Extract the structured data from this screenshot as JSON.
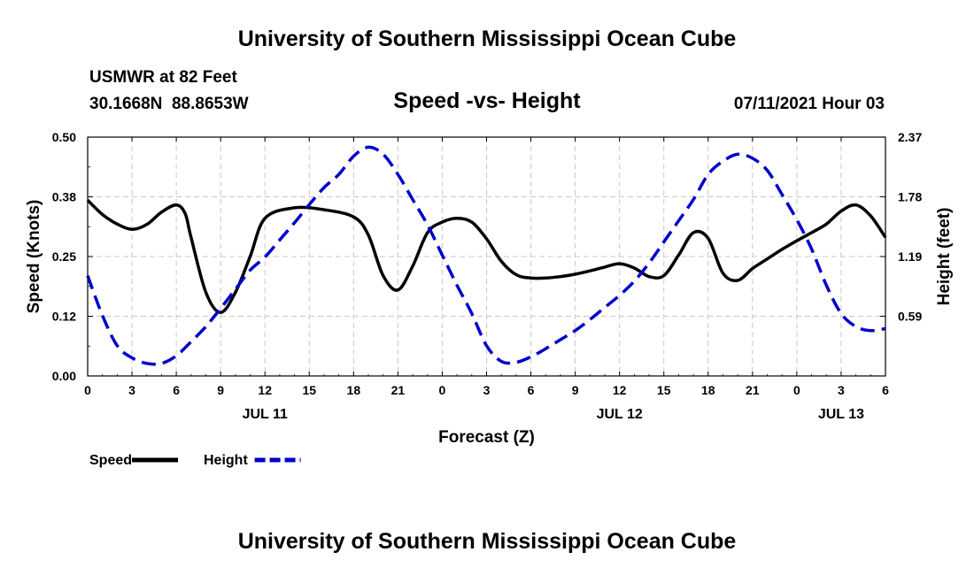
{
  "page": {
    "title_top": "University of Southern Mississippi Ocean Cube",
    "title_bottom": "University of Southern Mississippi Ocean Cube",
    "station": "USMWR at 82 Feet",
    "coords": "30.1668N  88.8653W",
    "datetime": "07/11/2021 Hour 03"
  },
  "chart_data": {
    "type": "line",
    "title": "Speed -vs- Height",
    "xlabel": "Forecast (Z)",
    "ylabel": "Speed (Knots)",
    "y2label": "Height (feet)",
    "xlim": [
      0,
      54
    ],
    "ylim": [
      0,
      0.5
    ],
    "y2lim": [
      0,
      2.37
    ],
    "x_tick_values": [
      0,
      3,
      6,
      9,
      12,
      15,
      18,
      21,
      24,
      27,
      30,
      33,
      36,
      39,
      42,
      45,
      48,
      51,
      54
    ],
    "x_tick_labels": [
      "0",
      "3",
      "6",
      "9",
      "12",
      "15",
      "18",
      "21",
      "0",
      "3",
      "6",
      "9",
      "12",
      "15",
      "18",
      "21",
      "0",
      "3",
      "6"
    ],
    "y_ticks": [
      0.0,
      0.125,
      0.25,
      0.375,
      0.5
    ],
    "y_tick_labels": [
      "0.00",
      "0.12",
      "0.25",
      "0.38",
      "0.50"
    ],
    "y2_ticks": [
      0.593,
      1.185,
      1.778,
      2.37
    ],
    "y2_tick_labels": [
      "0.59",
      "1.19",
      "1.78",
      "2.37"
    ],
    "date_labels": [
      {
        "x": 12,
        "label": "JUL 11"
      },
      {
        "x": 36,
        "label": "JUL 12"
      },
      {
        "x": 51,
        "label": "JUL 13"
      }
    ],
    "grid": true,
    "legend_position": "bottom-left",
    "series": [
      {
        "name": "Speed",
        "axis": "left",
        "color": "#000000",
        "style": "solid",
        "x": [
          0,
          1,
          2,
          3,
          4,
          5,
          6,
          6.6,
          7,
          8,
          9,
          10,
          11,
          12,
          14,
          16,
          18,
          19,
          20,
          21,
          22,
          23,
          24,
          25,
          26,
          27,
          28,
          29,
          30,
          31,
          32,
          33,
          34,
          35,
          36,
          37,
          38,
          39,
          40,
          41,
          42,
          43,
          44,
          45,
          46,
          47,
          48,
          49,
          50,
          51,
          52,
          53,
          54
        ],
        "values": [
          0.368,
          0.338,
          0.318,
          0.307,
          0.317,
          0.343,
          0.358,
          0.34,
          0.29,
          0.175,
          0.133,
          0.175,
          0.25,
          0.33,
          0.352,
          0.348,
          0.333,
          0.295,
          0.21,
          0.18,
          0.23,
          0.3,
          0.322,
          0.33,
          0.322,
          0.287,
          0.24,
          0.212,
          0.205,
          0.205,
          0.208,
          0.213,
          0.22,
          0.228,
          0.235,
          0.226,
          0.208,
          0.21,
          0.253,
          0.3,
          0.288,
          0.215,
          0.2,
          0.225,
          0.245,
          0.265,
          0.283,
          0.3,
          0.318,
          0.345,
          0.358,
          0.335,
          0.29
        ]
      },
      {
        "name": "Height",
        "axis": "right",
        "color": "#0000cc",
        "style": "dashed",
        "x": [
          0,
          1,
          2,
          3,
          4,
          5,
          6,
          7,
          8,
          9,
          10,
          11,
          12,
          13,
          14,
          15,
          16,
          17,
          18,
          19,
          20,
          21,
          22,
          23,
          24,
          25,
          26,
          27,
          28,
          29,
          30,
          31,
          32,
          33,
          34,
          35,
          36,
          37,
          38,
          39,
          40,
          41,
          42,
          43,
          44,
          45,
          46,
          47,
          48,
          49,
          50,
          51,
          52,
          53,
          54
        ],
        "values": [
          0.995,
          0.6,
          0.3,
          0.18,
          0.125,
          0.125,
          0.2,
          0.34,
          0.49,
          0.67,
          0.86,
          1.05,
          1.18,
          1.35,
          1.52,
          1.7,
          1.87,
          2.0,
          2.18,
          2.27,
          2.2,
          2.0,
          1.75,
          1.5,
          1.2,
          0.9,
          0.62,
          0.3,
          0.145,
          0.135,
          0.19,
          0.27,
          0.36,
          0.45,
          0.56,
          0.68,
          0.8,
          0.94,
          1.12,
          1.33,
          1.54,
          1.75,
          2.0,
          2.13,
          2.2,
          2.16,
          2.04,
          1.8,
          1.55,
          1.26,
          0.9,
          0.62,
          0.49,
          0.45,
          0.47
        ]
      }
    ]
  }
}
